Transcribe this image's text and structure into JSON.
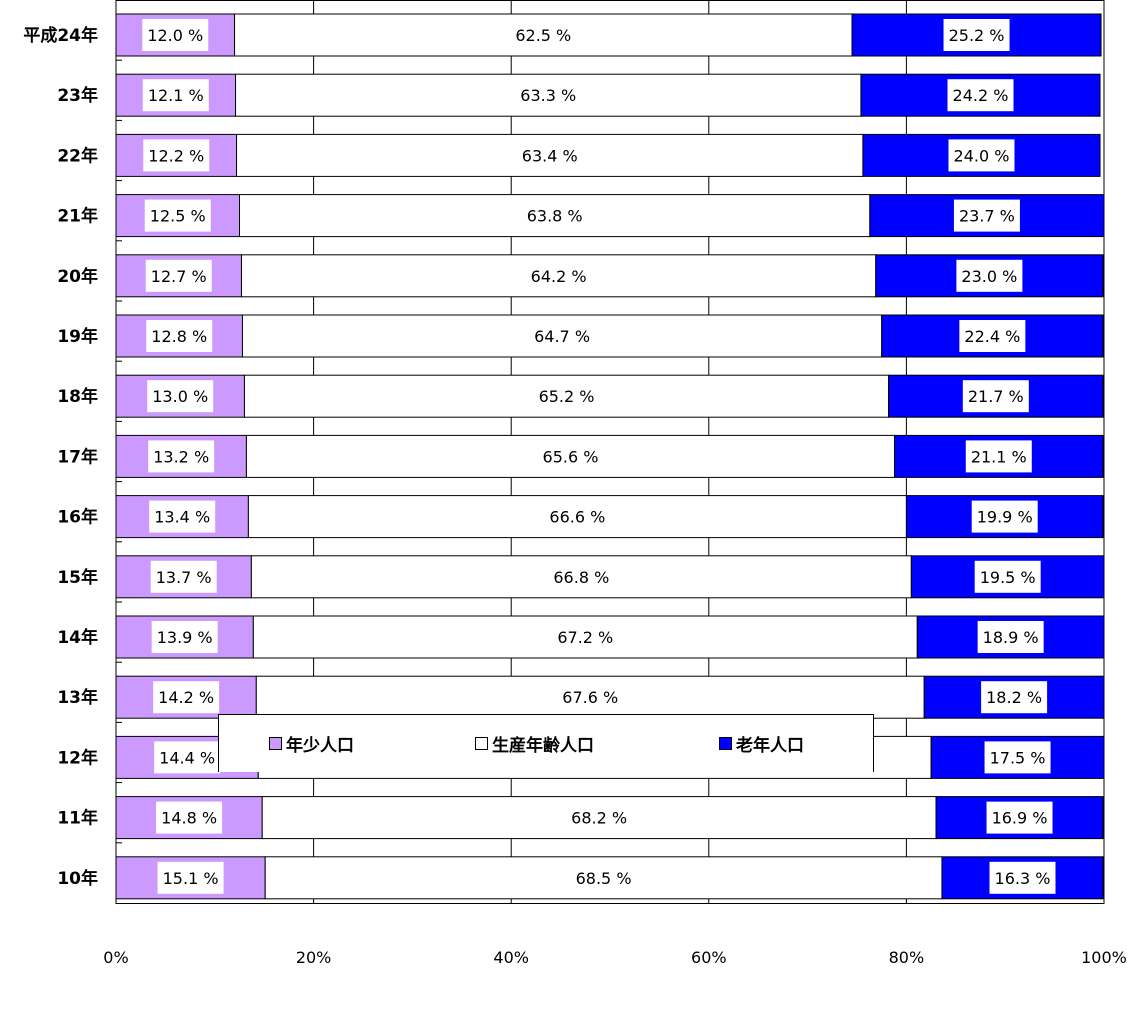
{
  "chart_data": {
    "type": "bar",
    "orientation": "horizontal",
    "stacked": "percent",
    "categories": [
      "平成24年",
      "23年",
      "22年",
      "21年",
      "20年",
      "19年",
      "18年",
      "17年",
      "16年",
      "15年",
      "14年",
      "13年",
      "12年",
      "11年",
      "10年"
    ],
    "series": [
      {
        "name": "年少人口",
        "color": "#cc99ff",
        "values": [
          12.0,
          12.1,
          12.2,
          12.5,
          12.7,
          12.8,
          13.0,
          13.2,
          13.4,
          13.7,
          13.9,
          14.2,
          14.4,
          14.8,
          15.1
        ]
      },
      {
        "name": "生産年齢人口",
        "color": "#ffffff",
        "values": [
          62.5,
          63.3,
          63.4,
          63.8,
          64.2,
          64.7,
          65.2,
          65.6,
          66.6,
          66.8,
          67.2,
          67.6,
          68.1,
          68.2,
          68.5
        ]
      },
      {
        "name": "老年人口",
        "color": "#0000ff",
        "values": [
          25.2,
          24.2,
          24.0,
          23.7,
          23.0,
          22.4,
          21.7,
          21.1,
          19.9,
          19.5,
          18.9,
          18.2,
          17.5,
          16.9,
          16.3
        ]
      }
    ],
    "value_suffix": " %",
    "x_ticks": [
      "0%",
      "20%",
      "40%",
      "60%",
      "80%",
      "100%"
    ],
    "xlim": [
      0,
      100
    ],
    "grid": true,
    "legend_position": "bottom"
  }
}
